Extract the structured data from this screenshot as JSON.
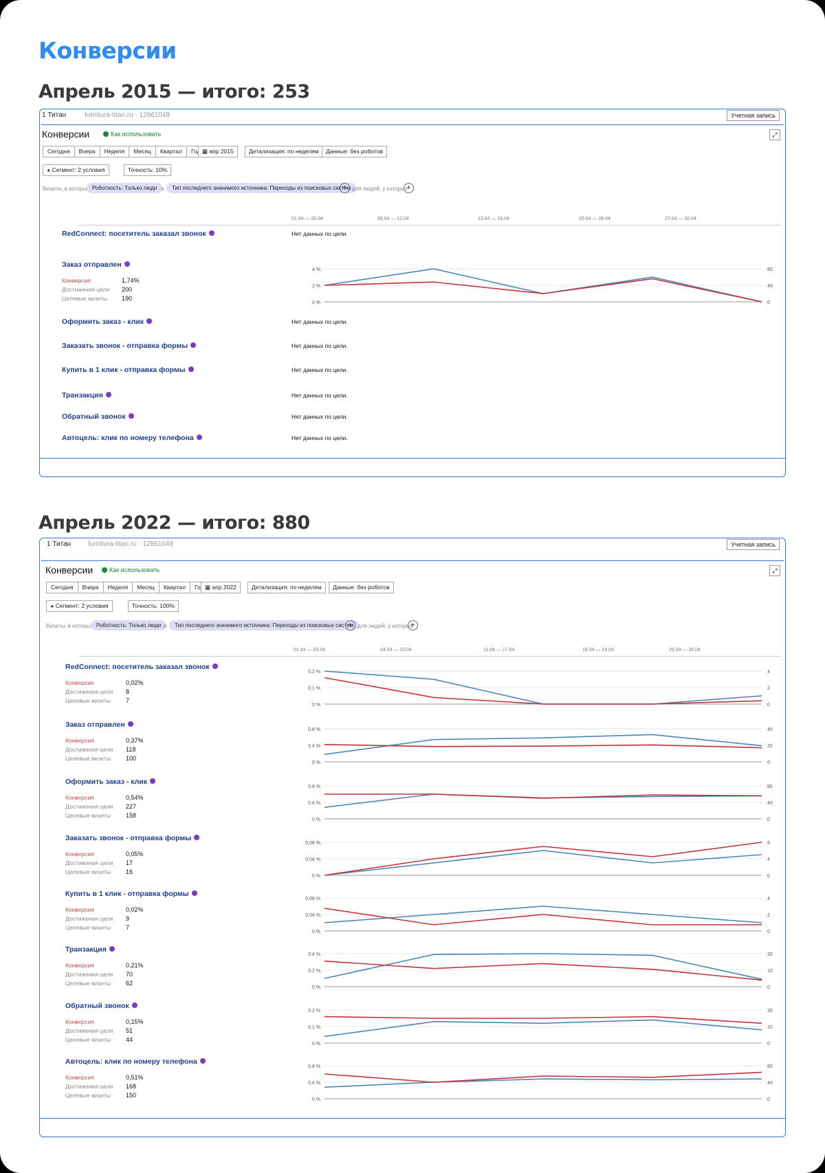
{
  "title": "Конверсии",
  "sections": [
    {
      "heading": "Апрель 2015 — итого: 253",
      "topbar": {
        "counter": "1 Титан",
        "site": "furnitura-titan.ru · 12861049",
        "account": "Учетная запись"
      },
      "report_title": "Конверсии",
      "howto": "Как использовать",
      "period_buttons": [
        "Сегодня",
        "Вчера",
        "Неделя",
        "Месяц",
        "Квартал",
        "Год"
      ],
      "date_button": "апр 2015",
      "detail": "Детализация: по неделям",
      "data_mode": "Данные: без роботов",
      "segment": "Сегмент: 2 условия",
      "accuracy": "Точность: 10%",
      "filter_label": "Визиты, в которых:",
      "filter_1": "Роботность: Только люди",
      "filter_and": "и",
      "filter_2": "Тип последнего значимого источника: Переходы из поисковых систем",
      "filter_people": "для людей, у которых",
      "periods": [
        "01.04 — 05.04",
        "06.04 — 12.04",
        "13.04 — 19.04",
        "20.04 — 26.04",
        "27.04 — 30.04"
      ],
      "goals": [
        {
          "name": "RedConnect: посетитель заказал звонок",
          "nodata": "Нет данных по цели."
        },
        {
          "name": "Заказ отправлен",
          "conv": "1,74%",
          "reach": "200",
          "visits": "190",
          "chart": {
            "left_ticks": [
              "4 %",
              "2 %",
              "0 %"
            ],
            "right_ticks": [
              "80",
              "40",
              "0"
            ],
            "y_max": 4,
            "blue": [
              2,
              4,
              1,
              3,
              0
            ],
            "red": [
              2,
              2.4,
              1,
              2.8,
              0
            ]
          }
        },
        {
          "name": "Оформить заказ - клик",
          "nodata": "Нет данных по цели."
        },
        {
          "name": "Заказать звонок - отправка формы",
          "nodata": "Нет данных по цели."
        },
        {
          "name": "Купить в 1 клик - отправка формы",
          "nodata": "Нет данных по цели."
        },
        {
          "name": "Транзакция",
          "nodata": "Нет данных по цели."
        },
        {
          "name": "Обратный звонок",
          "nodata": "Нет данных по цели."
        },
        {
          "name": "Автоцель: клик по номеру телефона",
          "nodata": "Нет данных по цели."
        }
      ]
    },
    {
      "heading": "Апрель 2022 — итого: 880",
      "topbar": {
        "counter": "1 Титан",
        "site": "furnitura-titan.ru · 12861049",
        "account": "Учетная запись"
      },
      "report_title": "Конверсии",
      "howto": "Как использовать",
      "period_buttons": [
        "Сегодня",
        "Вчера",
        "Неделя",
        "Месяц",
        "Квартал",
        "Год"
      ],
      "date_button": "апр 2022",
      "detail": "Детализация: по неделям",
      "data_mode": "Данные: без роботов",
      "segment": "Сегмент: 2 условия",
      "accuracy": "Точность: 100%",
      "filter_label": "Визиты, в которых:",
      "filter_1": "Роботность: Только люди",
      "filter_and": "и",
      "filter_2": "Тип последнего значимого источника: Переходы из поисковых систем",
      "filter_people": "для людей, у которых",
      "periods": [
        "01.04 — 03.04",
        "04.04 — 10.04",
        "11.04 — 17.04",
        "18.04 — 24.04",
        "25.04 — 30.04"
      ],
      "goals": [
        {
          "name": "RedConnect: посетитель заказал звонок",
          "conv": "0,02%",
          "reach": "8",
          "visits": "7",
          "chart": {
            "left_ticks": [
              "0.2 %",
              "0.1 %",
              "0 %"
            ],
            "right_ticks": [
              "4",
              "2",
              "0"
            ],
            "y_max": 0.2,
            "blue": [
              0.2,
              0.15,
              0,
              0,
              0.05
            ],
            "red": [
              0.16,
              0.04,
              0,
              0,
              0.02
            ]
          }
        },
        {
          "name": "Заказ отправлен",
          "conv": "0,37%",
          "reach": "118",
          "visits": "100",
          "chart": {
            "left_ticks": [
              "0.8 %",
              "0.4 %",
              "0 %"
            ],
            "right_ticks": [
              "40",
              "20",
              "0"
            ],
            "y_max": 0.8,
            "blue": [
              0.18,
              0.54,
              0.58,
              0.66,
              0.39
            ],
            "red": [
              0.42,
              0.37,
              0.38,
              0.41,
              0.34
            ]
          }
        },
        {
          "name": "Оформить заказ - клик",
          "conv": "0,54%",
          "reach": "227",
          "visits": "158",
          "chart": {
            "left_ticks": [
              "0.8 %",
              "0.4 %",
              "0 %"
            ],
            "right_ticks": [
              "80",
              "40",
              "0"
            ],
            "y_max": 0.8,
            "blue": [
              0.28,
              0.6,
              0.51,
              0.54,
              0.56
            ],
            "red": [
              0.6,
              0.6,
              0.5,
              0.58,
              0.56
            ]
          }
        },
        {
          "name": "Заказать звонок - отправка формы",
          "conv": "0,05%",
          "reach": "17",
          "visits": "16",
          "chart": {
            "left_ticks": [
              "0.08 %",
              "0.04 %",
              "0 %"
            ],
            "right_ticks": [
              "8",
              "4",
              "0"
            ],
            "y_max": 0.08,
            "blue": [
              0,
              0.03,
              0.06,
              0.03,
              0.05
            ],
            "red": [
              0,
              0.04,
              0.07,
              0.045,
              0.08
            ]
          }
        },
        {
          "name": "Купить в 1 клик - отправка формы",
          "conv": "0,02%",
          "reach": "9",
          "visits": "7",
          "chart": {
            "left_ticks": [
              "0.08 %",
              "0.04 %",
              "0 %"
            ],
            "right_ticks": [
              "4",
              "2",
              "0"
            ],
            "y_max": 0.08,
            "blue": [
              0.02,
              0.04,
              0.06,
              0.04,
              0.02
            ],
            "red": [
              0.055,
              0.015,
              0.04,
              0.015,
              0.015
            ]
          }
        },
        {
          "name": "Транзакция",
          "conv": "0,21%",
          "reach": "70",
          "visits": "62",
          "chart": {
            "left_ticks": [
              "0.4 %",
              "0.2 %",
              "0 %"
            ],
            "right_ticks": [
              "20",
              "10",
              "0"
            ],
            "y_max": 0.4,
            "blue": [
              0.1,
              0.39,
              0.4,
              0.38,
              0.09
            ],
            "red": [
              0.31,
              0.22,
              0.28,
              0.21,
              0.08
            ]
          }
        },
        {
          "name": "Обратный звонок",
          "conv": "0,15%",
          "reach": "51",
          "visits": "44",
          "chart": {
            "left_ticks": [
              "0.2 %",
              "0.1 %",
              "0 %"
            ],
            "right_ticks": [
              "20",
              "10",
              "0"
            ],
            "y_max": 0.2,
            "blue": [
              0.04,
              0.13,
              0.12,
              0.14,
              0.08
            ],
            "red": [
              0.16,
              0.15,
              0.15,
              0.16,
              0.12
            ]
          }
        },
        {
          "name": "Автоцель: клик по номеру телефона",
          "conv": "0,51%",
          "reach": "168",
          "visits": "150",
          "chart": {
            "left_ticks": [
              "0.8 %",
              "0.4 %",
              "0 %"
            ],
            "right_ticks": [
              "80",
              "40",
              "0"
            ],
            "y_max": 0.8,
            "blue": [
              0.28,
              0.4,
              0.48,
              0.46,
              0.48
            ],
            "red": [
              0.6,
              0.4,
              0.55,
              0.52,
              0.64
            ]
          }
        }
      ]
    }
  ],
  "metric_labels": {
    "conv": "Конверсия",
    "reach": "Достижения цели",
    "visits": "Целевые визиты"
  },
  "colors": {
    "title": "#2f8cf5",
    "blue_series": "#4a86b8",
    "red_series": "#c4333b",
    "frame": "#3a78d0"
  },
  "icons": {
    "goal_badge": "info-icon",
    "segment": "pie-icon",
    "calendar": "calendar-icon",
    "fullscreen": "expand-icon"
  }
}
